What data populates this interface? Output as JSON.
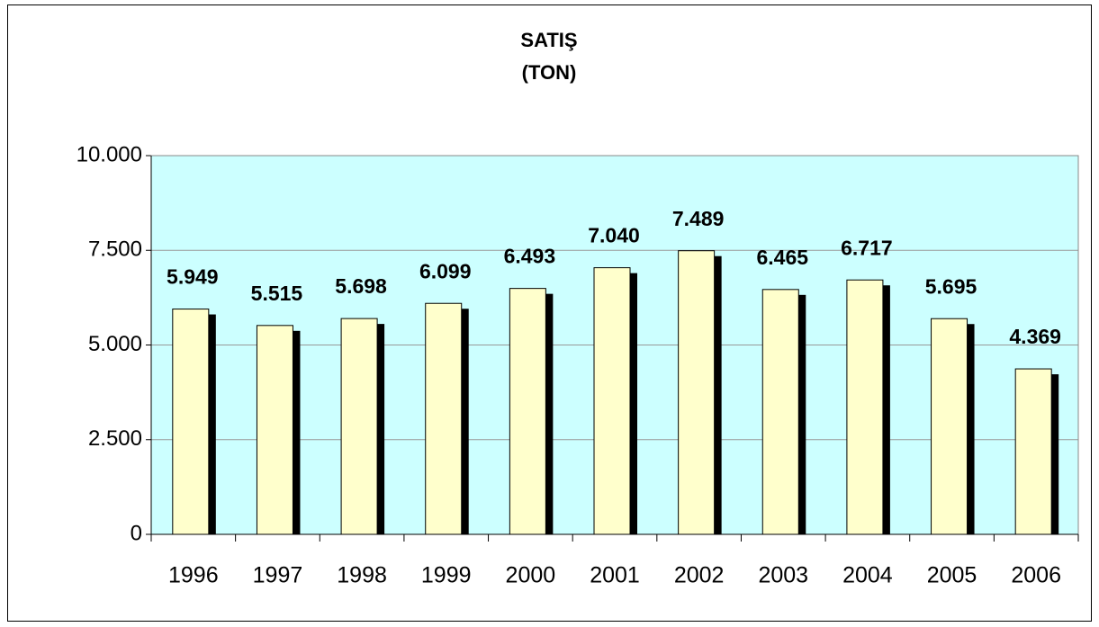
{
  "chart_data": {
    "type": "bar",
    "title": "SATIŞ",
    "subtitle": "(TON)",
    "categories": [
      "1996",
      "1997",
      "1998",
      "1999",
      "2000",
      "2001",
      "2002",
      "2003",
      "2004",
      "2005",
      "2006"
    ],
    "values": [
      5949,
      5515,
      5698,
      6099,
      6493,
      7040,
      7489,
      6465,
      6717,
      5695,
      4369
    ],
    "value_labels": [
      "5.949",
      "5.515",
      "5.698",
      "6.099",
      "6.493",
      "7.040",
      "7.489",
      "6.465",
      "6.717",
      "5.695",
      "4.369"
    ],
    "color": "#ffffcc",
    "plot_background": "#ccffff",
    "ylim": [
      0,
      10000
    ],
    "yticks": [
      0,
      {
        "value": 2500,
        "label": "2.500"
      },
      {
        "value": 5000,
        "label": "5.000"
      },
      {
        "value": 7500,
        "label": "7.500"
      },
      {
        "value": 10000,
        "label": "10.000"
      }
    ],
    "grid": true
  }
}
